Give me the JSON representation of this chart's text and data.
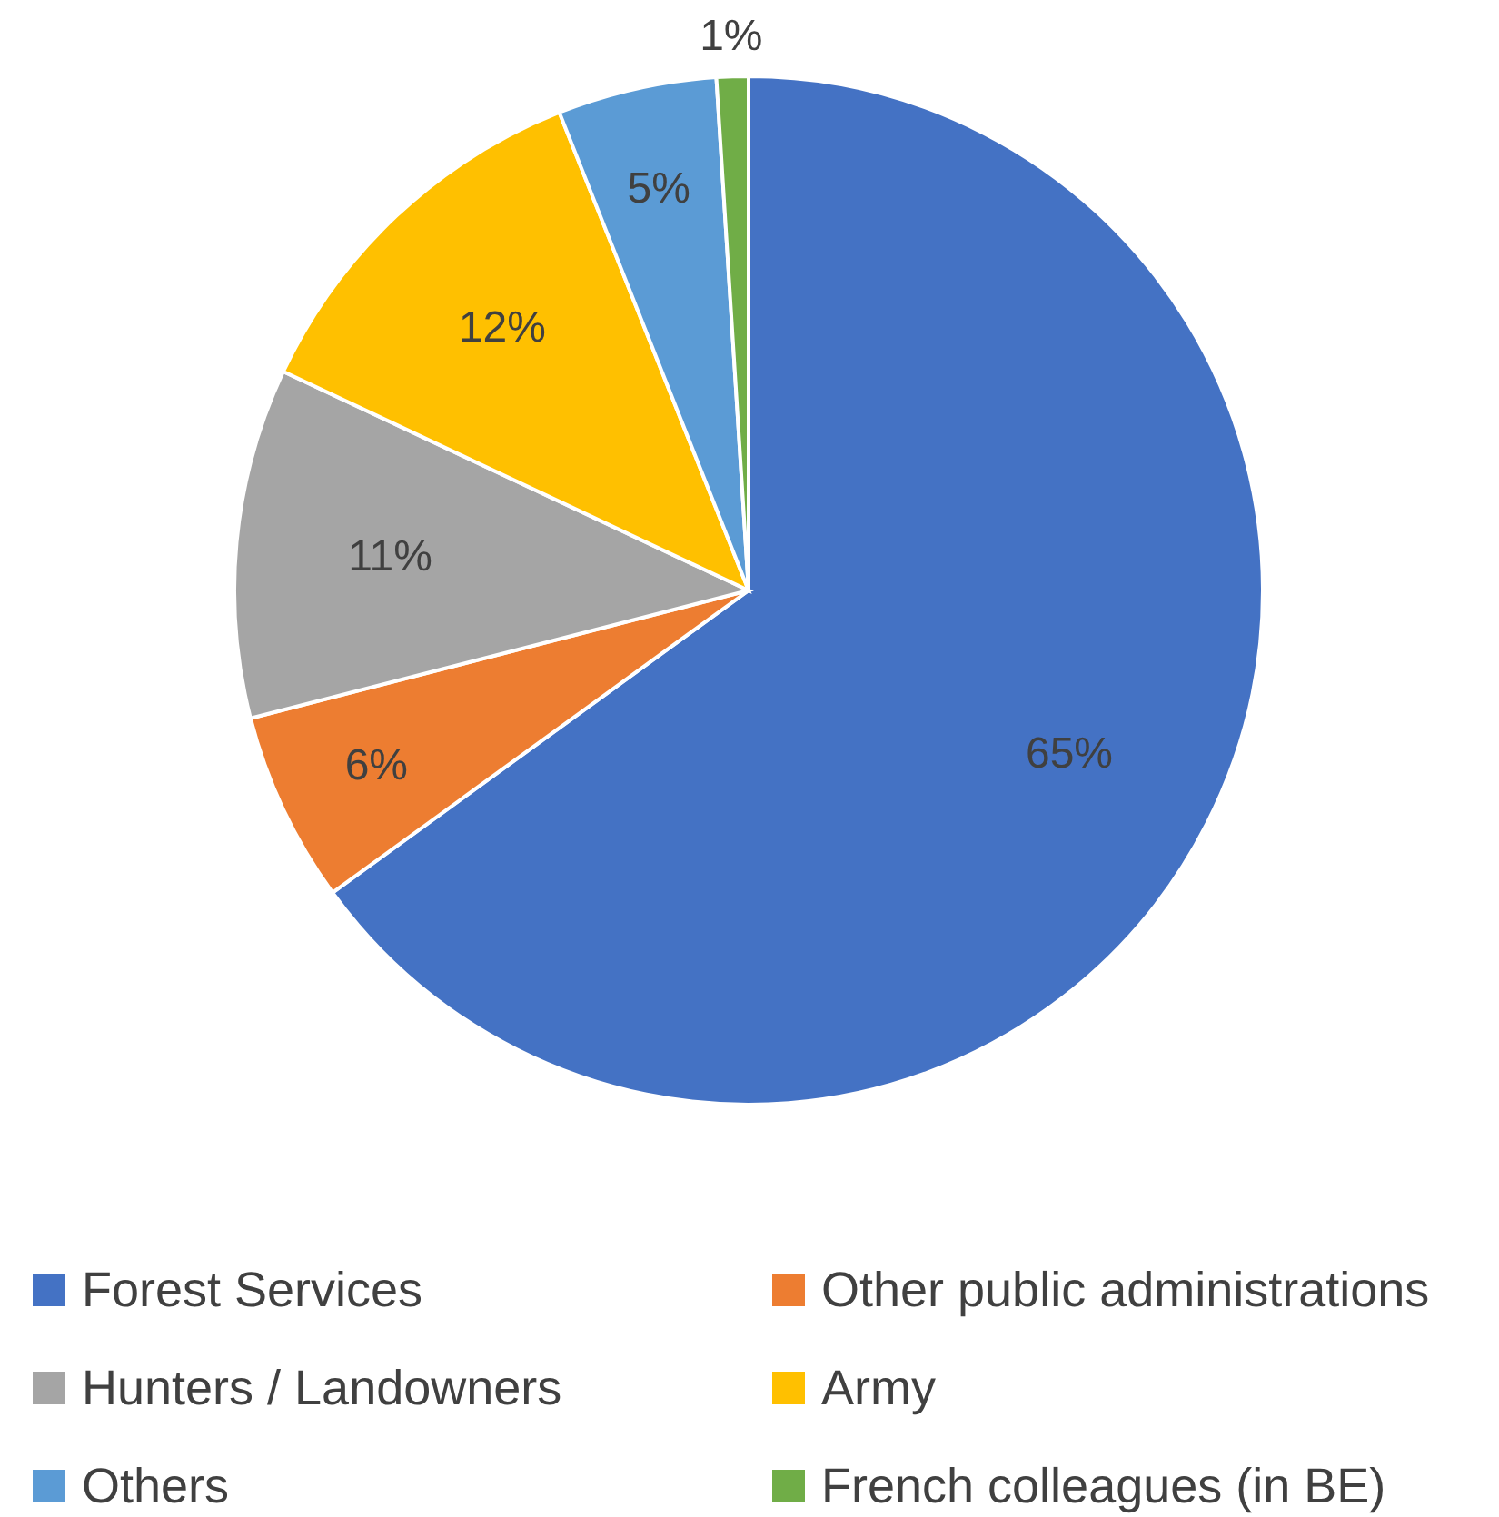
{
  "chart_data": {
    "type": "pie",
    "categories": [
      "Forest Services",
      "Other public administrations",
      "Hunters / Landowners",
      "Army",
      "Others",
      "French colleagues (in BE)"
    ],
    "values": [
      65,
      6,
      11,
      12,
      5,
      1
    ],
    "value_labels": [
      "65%",
      "6%",
      "11%",
      "12%",
      "5%",
      "1%"
    ],
    "colors": [
      "#4472c4",
      "#ed7d31",
      "#a5a5a5",
      "#ffc000",
      "#5b9bd5",
      "#70ad47"
    ],
    "legend": "bottom"
  }
}
